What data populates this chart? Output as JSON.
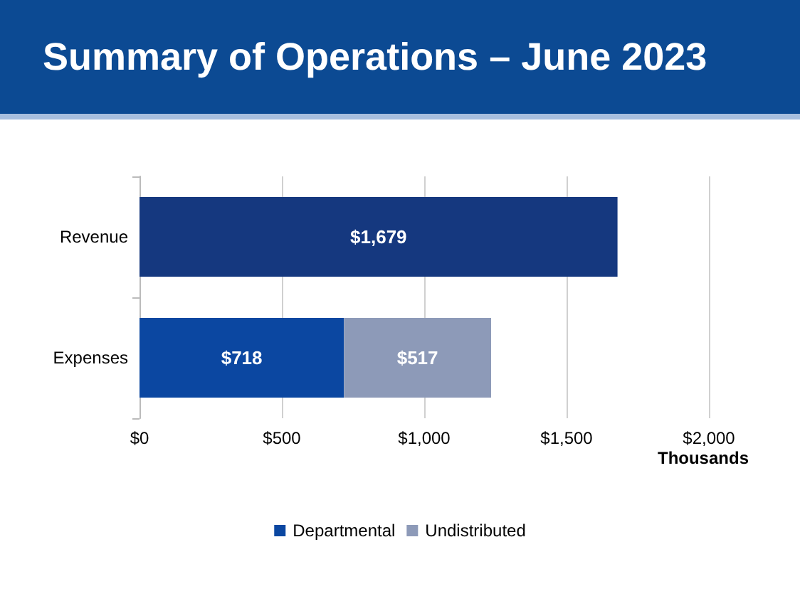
{
  "chart_data": {
    "type": "bar",
    "orientation": "horizontal",
    "stacked": true,
    "title": "Summary of Operations – June 2023",
    "xlabel": "Thousands",
    "categories": [
      "Revenue",
      "Expenses"
    ],
    "series": [
      {
        "color": "#15387f",
        "values": [
          1679,
          null
        ],
        "value_labels": [
          "$1,679",
          null
        ]
      },
      {
        "name": "Departmental",
        "color": "#0b47a1",
        "values": [
          null,
          718
        ],
        "value_labels": [
          null,
          "$718"
        ]
      },
      {
        "name": "Undistributed",
        "color": "#8d9ab8",
        "values": [
          null,
          517
        ],
        "value_labels": [
          null,
          "$517"
        ]
      }
    ],
    "xlim": [
      0,
      2000
    ],
    "xticks": [
      {
        "value": 0,
        "label": "$0"
      },
      {
        "value": 500,
        "label": "$500"
      },
      {
        "value": 1000,
        "label": "$1,000"
      },
      {
        "value": 1500,
        "label": "$1,500"
      },
      {
        "value": 2000,
        "label": "$2,000"
      }
    ],
    "grid": "x",
    "legend": "bottom"
  }
}
